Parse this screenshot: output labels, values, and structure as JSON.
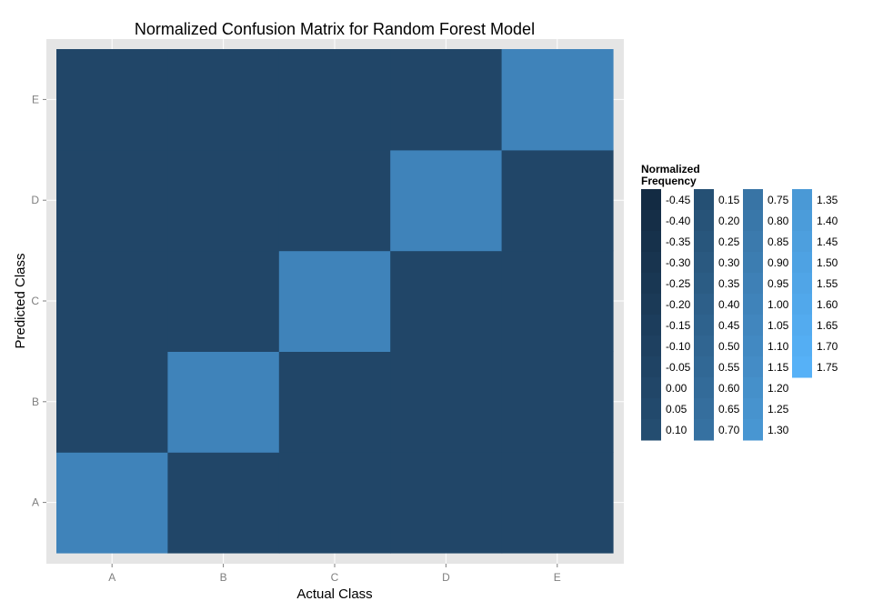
{
  "chart_data": {
    "type": "heatmap",
    "title": "Normalized Confusion Matrix for Random Forest Model",
    "xlabel": "Actual Class",
    "ylabel": "Predicted Class",
    "x_categories": [
      "A",
      "B",
      "C",
      "D",
      "E"
    ],
    "y_categories": [
      "A",
      "B",
      "C",
      "D",
      "E"
    ],
    "values": [
      [
        1.0,
        0.0,
        0.0,
        0.0,
        0.0
      ],
      [
        0.0,
        1.0,
        0.0,
        0.0,
        0.0
      ],
      [
        0.0,
        0.0,
        1.0,
        0.0,
        0.0
      ],
      [
        0.0,
        0.0,
        0.0,
        1.0,
        0.0
      ],
      [
        0.0,
        0.0,
        0.0,
        0.0,
        1.0
      ]
    ],
    "values_note_orientation": "rows = predicted class A..E, columns = actual class A..E",
    "color_low": "#132b43",
    "color_high": "#56b1f7",
    "value_range": [
      -0.45,
      1.75
    ],
    "panel_background": "#e5e5e5",
    "grid_color": "#ffffff",
    "legend": {
      "title_line1": "Normalized",
      "title_line2": "Frequency",
      "placement": "right",
      "columns": [
        [
          "-0.45",
          "-0.40",
          "-0.35",
          "-0.30",
          "-0.25",
          "-0.20",
          "-0.15",
          "-0.10",
          "-0.05",
          "0.00",
          "0.05",
          "0.10"
        ],
        [
          "0.15",
          "0.20",
          "0.25",
          "0.30",
          "0.35",
          "0.40",
          "0.45",
          "0.50",
          "0.55",
          "0.60",
          "0.65",
          "0.70"
        ],
        [
          "0.75",
          "0.80",
          "0.85",
          "0.90",
          "0.95",
          "1.00",
          "1.05",
          "1.10",
          "1.15",
          "1.20",
          "1.25",
          "1.30"
        ],
        [
          "1.35",
          "1.40",
          "1.45",
          "1.50",
          "1.55",
          "1.60",
          "1.65",
          "1.70",
          "1.75"
        ]
      ]
    }
  }
}
